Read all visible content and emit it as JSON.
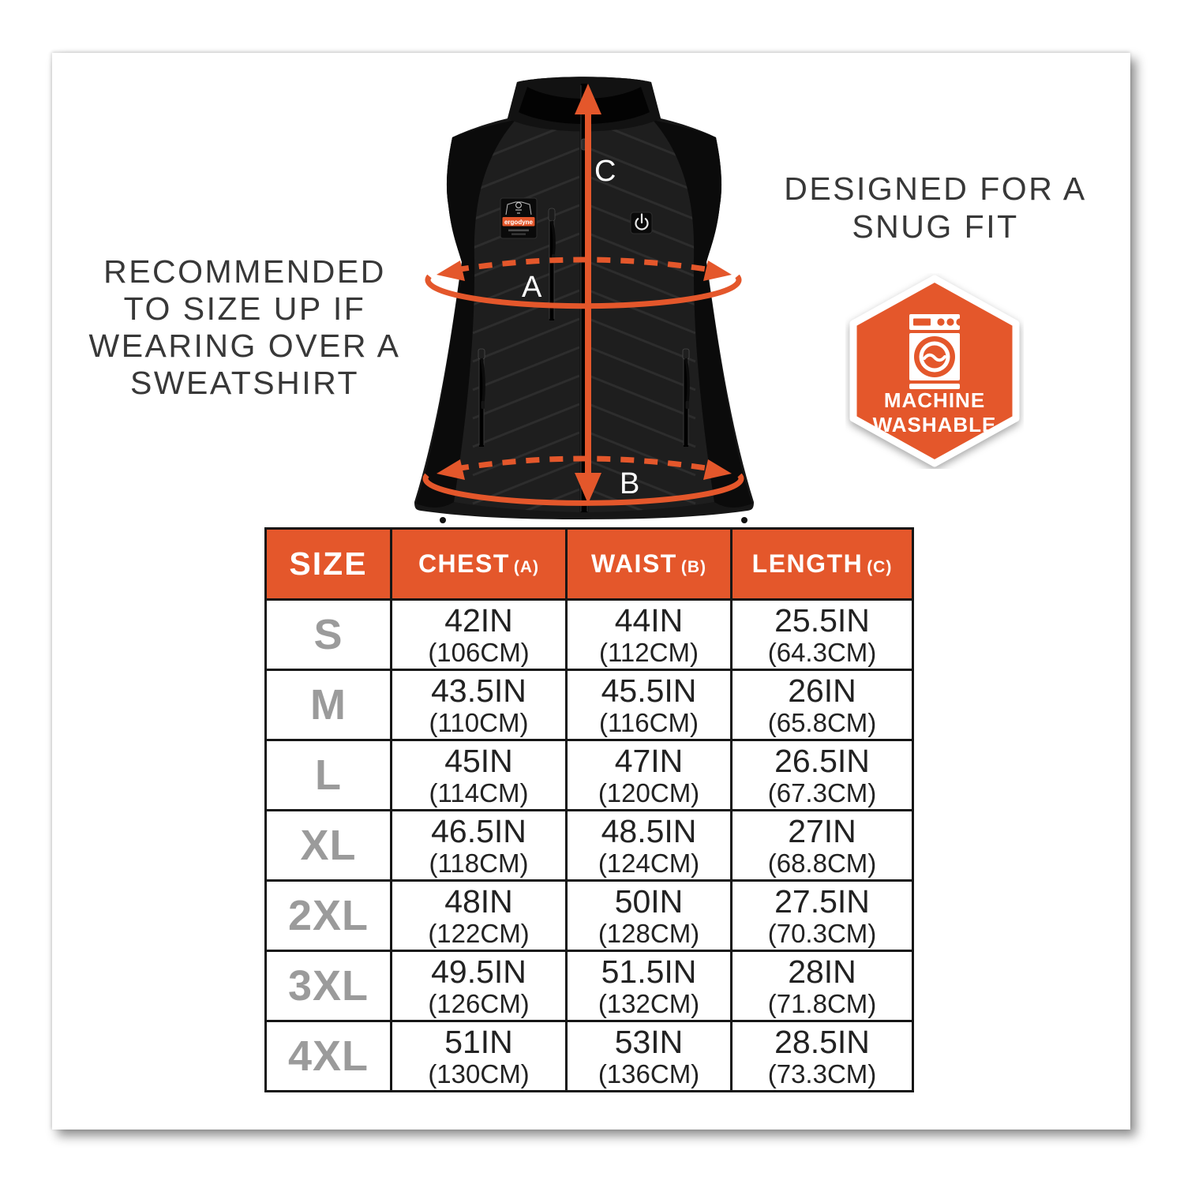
{
  "accent_color": "#E4572B",
  "left_note": {
    "lines": [
      "RECOMMENDED",
      "TO SIZE UP IF",
      "WEARING OVER A",
      "SWEATSHIRT"
    ]
  },
  "right_note": {
    "lines": [
      "DESIGNED FOR A",
      "SNUG FIT"
    ]
  },
  "washable_badge": {
    "line1": "MACHINE",
    "line2": "WASHABLE"
  },
  "vest": {
    "brand_patch": "ergodyne",
    "labels": {
      "chest": "A",
      "waist": "B",
      "length": "C"
    }
  },
  "size_table": {
    "columns": [
      {
        "label": "SIZE",
        "suffix": ""
      },
      {
        "label": "CHEST",
        "suffix": "(A)"
      },
      {
        "label": "WAIST",
        "suffix": "(B)"
      },
      {
        "label": "LENGTH",
        "suffix": "(C)"
      }
    ],
    "rows": [
      {
        "size": "S",
        "chest": [
          "42IN",
          "(106CM)"
        ],
        "waist": [
          "44IN",
          "(112CM)"
        ],
        "length": [
          "25.5IN",
          "(64.3CM)"
        ]
      },
      {
        "size": "M",
        "chest": [
          "43.5IN",
          "(110CM)"
        ],
        "waist": [
          "45.5IN",
          "(116CM)"
        ],
        "length": [
          "26IN",
          "(65.8CM)"
        ]
      },
      {
        "size": "L",
        "chest": [
          "45IN",
          "(114CM)"
        ],
        "waist": [
          "47IN",
          "(120CM)"
        ],
        "length": [
          "26.5IN",
          "(67.3CM)"
        ]
      },
      {
        "size": "XL",
        "chest": [
          "46.5IN",
          "(118CM)"
        ],
        "waist": [
          "48.5IN",
          "(124CM)"
        ],
        "length": [
          "27IN",
          "(68.8CM)"
        ]
      },
      {
        "size": "2XL",
        "chest": [
          "48IN",
          "(122CM)"
        ],
        "waist": [
          "50IN",
          "(128CM)"
        ],
        "length": [
          "27.5IN",
          "(70.3CM)"
        ]
      },
      {
        "size": "3XL",
        "chest": [
          "49.5IN",
          "(126CM)"
        ],
        "waist": [
          "51.5IN",
          "(132CM)"
        ],
        "length": [
          "28IN",
          "(71.8CM)"
        ]
      },
      {
        "size": "4XL",
        "chest": [
          "51IN",
          "(130CM)"
        ],
        "waist": [
          "53IN",
          "(136CM)"
        ],
        "length": [
          "28.5IN",
          "(73.3CM)"
        ]
      }
    ]
  }
}
